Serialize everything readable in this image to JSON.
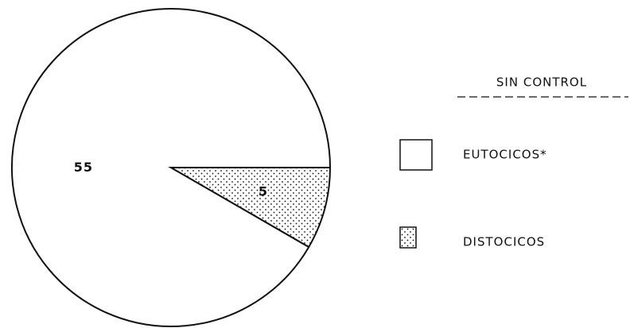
{
  "chart_data": {
    "type": "pie",
    "legend_title": "SIN CONTROL",
    "categories": [
      "EUTOCICOS*",
      "DISTOCICOS"
    ],
    "values": [
      55,
      5
    ],
    "fills": [
      "plain",
      "dots"
    ],
    "color": "#111111"
  }
}
